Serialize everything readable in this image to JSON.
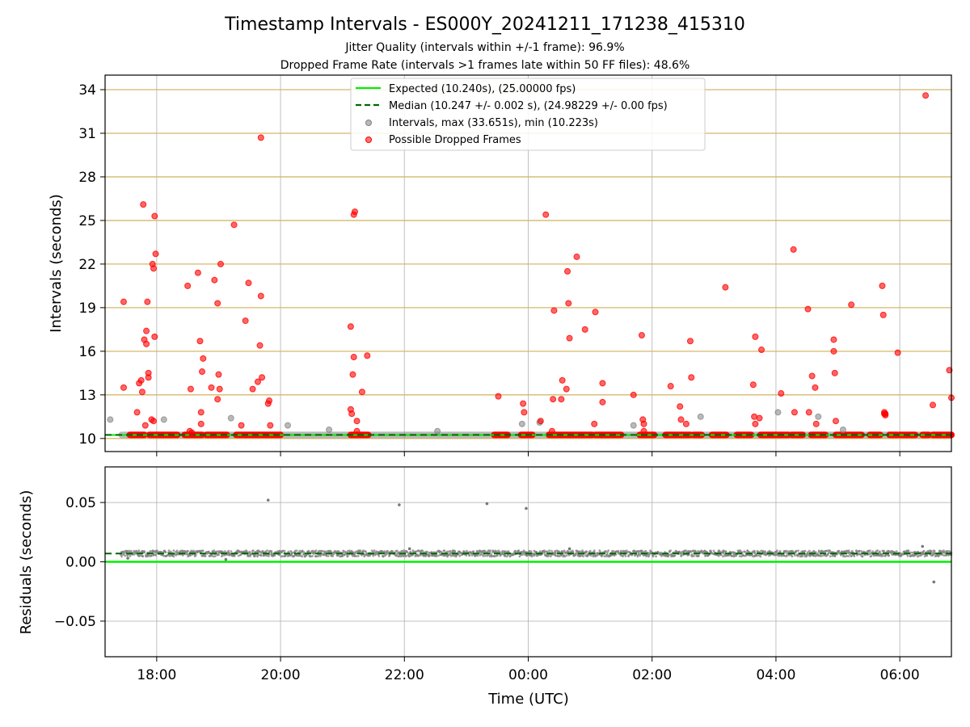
{
  "chart_data": [
    {
      "type": "scatter",
      "title": "Timestamp Intervals - ES000Y_20241211_171238_415310",
      "subtitle_lines": [
        "Jitter Quality (intervals within +/-1 frame): 96.9%",
        "Dropped Frame Rate (intervals >1 frames late within 50 FF files): 48.6%"
      ],
      "ylabel": "Intervals (seconds)",
      "x_axis": {
        "start": "17:10",
        "end": "06:50"
      },
      "ylim": [
        9.1,
        35.0
      ],
      "yticks": [
        10,
        13,
        16,
        19,
        22,
        25,
        28,
        31,
        34
      ],
      "grid": true,
      "legend_placement": "upper-center",
      "colors": {
        "expected": "#00ee00",
        "median": "#006600",
        "intervals": "#808080",
        "dropped": "#ff0000",
        "hgrid": "#d4b86a"
      },
      "legend": [
        "Expected (10.240s), (25.00000 fps)",
        "Median (10.247 +/- 0.002 s), (24.98229 +/- 0.00 fps)",
        "Intervals, max (33.651s), min (10.223s)",
        "Possible Dropped Frames"
      ],
      "expected_value": 10.24,
      "median_value": 10.247,
      "baseline_range": [
        "17:26",
        "06:50"
      ],
      "dropped_baseline_segments": [
        [
          "17:34",
          "17:48"
        ],
        [
          "17:53",
          "18:20"
        ],
        [
          "18:27",
          "18:44"
        ],
        [
          "18:48",
          "19:08"
        ],
        [
          "19:17",
          "20:00"
        ],
        [
          "21:08",
          "21:25"
        ],
        [
          "23:27",
          "23:40"
        ],
        [
          "23:53",
          "24:04"
        ],
        [
          "24:20",
          "25:02"
        ],
        [
          "25:05",
          "25:30"
        ],
        [
          "25:48",
          "26:02"
        ],
        [
          "26:13",
          "26:37"
        ],
        [
          "26:40",
          "26:48"
        ],
        [
          "26:58",
          "27:12"
        ],
        [
          "27:22",
          "27:36"
        ],
        [
          "27:45",
          "28:12"
        ],
        [
          "28:15",
          "28:26"
        ],
        [
          "28:34",
          "28:48"
        ],
        [
          "28:58",
          "29:23"
        ],
        [
          "29:31",
          "29:41"
        ],
        [
          "29:50",
          "29:58"
        ],
        [
          "30:00",
          "30:15"
        ],
        [
          "30:22",
          "30:28"
        ],
        [
          "30:32",
          "30:50"
        ]
      ],
      "gray_points": [
        [
          "17:15",
          11.3
        ],
        [
          "18:07",
          11.3
        ],
        [
          "19:12",
          11.4
        ],
        [
          "20:07",
          10.9
        ],
        [
          "20:47",
          10.6
        ],
        [
          "22:32",
          10.5
        ],
        [
          "23:54",
          11.0
        ],
        [
          "24:11",
          11.1
        ],
        [
          "25:42",
          10.9
        ],
        [
          "26:47",
          11.5
        ],
        [
          "28:02",
          11.8
        ],
        [
          "28:41",
          11.5
        ],
        [
          "29:05",
          10.6
        ]
      ],
      "dropped_points": [
        [
          "17:28",
          19.4
        ],
        [
          "17:28",
          13.5
        ],
        [
          "17:41",
          11.8
        ],
        [
          "17:43",
          13.8
        ],
        [
          "17:45",
          14.0
        ],
        [
          "17:46",
          13.2
        ],
        [
          "17:47",
          26.1
        ],
        [
          "17:48",
          16.8
        ],
        [
          "17:49",
          10.9
        ],
        [
          "17:50",
          16.5
        ],
        [
          "17:50",
          17.4
        ],
        [
          "17:51",
          19.4
        ],
        [
          "17:52",
          14.5
        ],
        [
          "17:52",
          14.2
        ],
        [
          "17:55",
          11.3
        ],
        [
          "17:56",
          22.0
        ],
        [
          "17:57",
          11.2
        ],
        [
          "17:57",
          21.7
        ],
        [
          "17:58",
          17.0
        ],
        [
          "17:58",
          25.3
        ],
        [
          "17:59",
          22.7
        ],
        [
          "18:30",
          20.5
        ],
        [
          "18:32",
          10.5
        ],
        [
          "18:33",
          13.4
        ],
        [
          "18:34",
          10.4
        ],
        [
          "18:40",
          21.4
        ],
        [
          "18:42",
          16.7
        ],
        [
          "18:43",
          11.8
        ],
        [
          "18:43",
          11.0
        ],
        [
          "18:44",
          14.6
        ],
        [
          "18:45",
          15.5
        ],
        [
          "18:53",
          13.5
        ],
        [
          "18:56",
          20.9
        ],
        [
          "18:59",
          12.7
        ],
        [
          "18:59",
          19.3
        ],
        [
          "19:00",
          14.4
        ],
        [
          "19:01",
          13.4
        ],
        [
          "19:02",
          22.0
        ],
        [
          "19:15",
          24.7
        ],
        [
          "19:22",
          10.9
        ],
        [
          "19:26",
          18.1
        ],
        [
          "19:29",
          20.7
        ],
        [
          "19:33",
          13.4
        ],
        [
          "19:38",
          13.9
        ],
        [
          "19:40",
          16.4
        ],
        [
          "19:41",
          30.7
        ],
        [
          "19:41",
          19.8
        ],
        [
          "19:42",
          14.2
        ],
        [
          "19:48",
          12.4
        ],
        [
          "19:49",
          12.6
        ],
        [
          "19:50",
          10.9
        ],
        [
          "21:08",
          17.7
        ],
        [
          "21:08",
          12.0
        ],
        [
          "21:09",
          11.7
        ],
        [
          "21:10",
          14.4
        ],
        [
          "21:11",
          15.6
        ],
        [
          "21:11",
          25.4
        ],
        [
          "21:12",
          25.6
        ],
        [
          "21:14",
          11.2
        ],
        [
          "21:14",
          10.5
        ],
        [
          "21:19",
          13.2
        ],
        [
          "21:24",
          15.7
        ],
        [
          "23:31",
          12.9
        ],
        [
          "23:55",
          12.4
        ],
        [
          "23:56",
          11.8
        ],
        [
          "24:12",
          11.2
        ],
        [
          "24:17",
          25.4
        ],
        [
          "24:23",
          10.5
        ],
        [
          "24:24",
          12.7
        ],
        [
          "24:25",
          18.8
        ],
        [
          "24:32",
          12.7
        ],
        [
          "24:33",
          14.0
        ],
        [
          "24:37",
          13.4
        ],
        [
          "24:38",
          21.5
        ],
        [
          "24:39",
          19.3
        ],
        [
          "24:40",
          16.9
        ],
        [
          "24:47",
          22.5
        ],
        [
          "24:55",
          17.5
        ],
        [
          "25:04",
          11.0
        ],
        [
          "25:05",
          18.7
        ],
        [
          "25:12",
          13.8
        ],
        [
          "25:12",
          12.5
        ],
        [
          "25:42",
          13.0
        ],
        [
          "25:50",
          17.1
        ],
        [
          "25:51",
          11.3
        ],
        [
          "25:52",
          11.0
        ],
        [
          "25:52",
          10.5
        ],
        [
          "26:18",
          13.6
        ],
        [
          "26:27",
          12.2
        ],
        [
          "26:28",
          11.3
        ],
        [
          "26:33",
          11.0
        ],
        [
          "26:37",
          16.7
        ],
        [
          "26:38",
          14.2
        ],
        [
          "27:11",
          20.4
        ],
        [
          "27:38",
          13.7
        ],
        [
          "27:39",
          11.5
        ],
        [
          "27:40",
          17.0
        ],
        [
          "27:40",
          11.0
        ],
        [
          "27:44",
          11.4
        ],
        [
          "27:46",
          16.1
        ],
        [
          "28:05",
          13.1
        ],
        [
          "28:17",
          23.0
        ],
        [
          "28:18",
          11.8
        ],
        [
          "28:31",
          18.9
        ],
        [
          "28:32",
          11.8
        ],
        [
          "28:35",
          14.3
        ],
        [
          "28:38",
          13.5
        ],
        [
          "28:39",
          11.0
        ],
        [
          "28:56",
          16.8
        ],
        [
          "28:56",
          16.0
        ],
        [
          "28:57",
          14.5
        ],
        [
          "28:58",
          11.2
        ],
        [
          "29:13",
          19.2
        ],
        [
          "29:43",
          20.5
        ],
        [
          "29:44",
          18.5
        ],
        [
          "29:45",
          11.7
        ],
        [
          "29:45",
          11.8
        ],
        [
          "29:46",
          11.7
        ],
        [
          "29:46",
          11.6
        ],
        [
          "29:58",
          15.9
        ],
        [
          "30:25",
          33.6
        ],
        [
          "30:32",
          12.3
        ],
        [
          "30:48",
          14.7
        ],
        [
          "30:50",
          12.8
        ]
      ]
    },
    {
      "type": "scatter",
      "ylabel": "Residuals (seconds)",
      "xlabel": "Time (UTC)",
      "x_axis": {
        "start": "17:10",
        "end": "06:50"
      },
      "ylim": [
        -0.08,
        0.08
      ],
      "yticks": [
        0.05,
        0.0,
        -0.05
      ],
      "ytick_labels": [
        "0.05",
        "0.00",
        "−0.05"
      ],
      "xticks": [
        "18:00",
        "20:00",
        "22:00",
        "00:00",
        "02:00",
        "04:00",
        "06:00"
      ],
      "grid": true,
      "expected_residual": 0.0,
      "median_residual": 0.007,
      "residual_band": {
        "center": 0.007,
        "spread": 0.0025,
        "range": [
          "17:25",
          "06:50"
        ]
      },
      "outlier_points": [
        [
          "19:48",
          0.052
        ],
        [
          "21:55",
          0.048
        ],
        [
          "23:20",
          0.049
        ],
        [
          "23:58",
          0.045
        ],
        [
          "30:33",
          -0.017
        ],
        [
          "17:32",
          0.003
        ],
        [
          "19:07",
          0.002
        ],
        [
          "30:22",
          0.013
        ],
        [
          "22:05",
          0.011
        ],
        [
          "24:40",
          0.011
        ]
      ]
    }
  ]
}
